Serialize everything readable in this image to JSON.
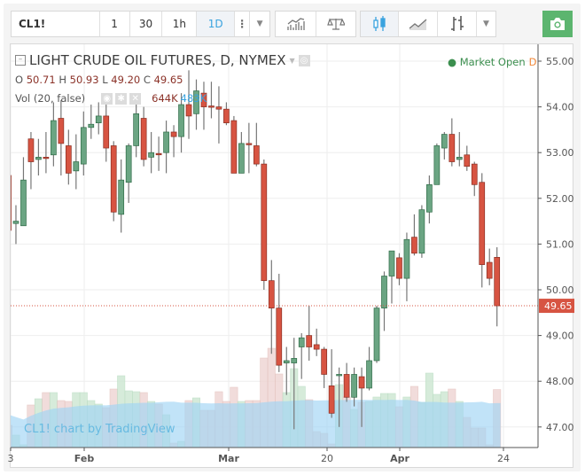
{
  "toolbar": {
    "symbol": "CL1!",
    "intervals": [
      "1",
      "30",
      "1h",
      "1D"
    ],
    "active_interval": "1D",
    "icons": [
      "more-vertical-icon",
      "chevron-down-icon",
      "indicators-icon",
      "compare-scale-icon",
      "candles-icon",
      "area-icon",
      "bars-icon",
      "chevron-down-icon"
    ],
    "snapshot_icon": "camera-icon"
  },
  "legend": {
    "title": "LIGHT CRUDE OIL FUTURES, D, NYMEX",
    "ohlc": {
      "o_label": "O",
      "o": "50.71",
      "h_label": "H",
      "h": "50.93",
      "l_label": "L",
      "l": "49.20",
      "c_label": "C",
      "c": "49.65"
    },
    "volume_label": "Vol (20, false)",
    "volume_value": "644K",
    "volume_ma_value": "483K",
    "market_status": "Market Open",
    "market_flag": "D"
  },
  "watermark": "CL1! chart by TradingView",
  "colors": {
    "up": "#6ba583",
    "down": "#d75442",
    "volume_ma": "#9fd4f5",
    "accent": "#3aa3df",
    "camera": "#5cb56f"
  },
  "chart_data": {
    "type": "candlestick",
    "ylim": [
      46.6,
      55.3
    ],
    "y_ticks": [
      "55.00",
      "54.00",
      "53.00",
      "52.00",
      "51.00",
      "50.00",
      "49.00",
      "48.00",
      "47.00"
    ],
    "x_ticks": [
      "3",
      "Feb",
      "Mar",
      "20",
      "Apr",
      "24"
    ],
    "last_price": "49.65",
    "grid": true,
    "ohlc": [
      [
        52.5,
        52.5,
        51.3,
        51.3
      ],
      [
        51.45,
        51.85,
        51.0,
        51.5
      ],
      [
        51.4,
        52.9,
        51.4,
        52.4
      ],
      [
        53.3,
        53.45,
        52.2,
        52.8
      ],
      [
        52.85,
        53.3,
        52.5,
        52.9
      ],
      [
        52.9,
        53.45,
        52.55,
        52.88
      ],
      [
        52.95,
        54.1,
        52.7,
        53.7
      ],
      [
        53.75,
        54.15,
        52.5,
        53.2
      ],
      [
        53.15,
        53.5,
        52.3,
        52.55
      ],
      [
        52.6,
        53.4,
        52.2,
        52.8
      ],
      [
        52.75,
        53.9,
        52.5,
        53.55
      ],
      [
        53.55,
        54.05,
        53.3,
        53.62
      ],
      [
        53.65,
        54.1,
        53.4,
        53.8
      ],
      [
        53.8,
        54.3,
        52.8,
        53.1
      ],
      [
        53.15,
        53.25,
        51.5,
        51.7
      ],
      [
        51.65,
        52.85,
        51.25,
        52.4
      ],
      [
        52.35,
        53.2,
        51.9,
        53.15
      ],
      [
        53.15,
        54.15,
        52.9,
        53.85
      ],
      [
        53.75,
        54.0,
        52.7,
        52.85
      ],
      [
        52.9,
        53.45,
        52.55,
        53.0
      ],
      [
        52.98,
        53.35,
        52.6,
        52.97
      ],
      [
        53.0,
        53.7,
        52.55,
        53.45
      ],
      [
        53.45,
        53.6,
        52.9,
        53.35
      ],
      [
        53.35,
        54.3,
        53.0,
        54.05
      ],
      [
        54.05,
        54.8,
        53.3,
        53.8
      ],
      [
        53.85,
        54.6,
        53.5,
        54.35
      ],
      [
        54.3,
        54.55,
        53.5,
        54.0
      ],
      [
        54.02,
        54.55,
        53.75,
        54.0
      ],
      [
        54.0,
        54.45,
        53.2,
        53.95
      ],
      [
        53.95,
        54.1,
        53.6,
        53.65
      ],
      [
        53.7,
        53.8,
        52.55,
        52.55
      ],
      [
        52.55,
        53.45,
        52.55,
        53.2
      ],
      [
        53.2,
        53.65,
        52.55,
        53.18
      ],
      [
        53.15,
        53.65,
        52.7,
        52.75
      ],
      [
        52.75,
        52.85,
        50.0,
        50.2
      ],
      [
        50.2,
        50.65,
        48.6,
        49.6
      ],
      [
        49.6,
        50.35,
        48.2,
        48.35
      ],
      [
        48.4,
        48.75,
        47.7,
        48.45
      ],
      [
        48.4,
        48.95,
        46.95,
        48.5
      ],
      [
        48.75,
        49.05,
        48.05,
        48.95
      ],
      [
        49.0,
        49.65,
        48.45,
        48.75
      ],
      [
        48.8,
        49.15,
        48.55,
        48.7
      ],
      [
        48.7,
        48.75,
        47.85,
        48.15
      ],
      [
        47.9,
        48.7,
        47.2,
        47.3
      ],
      [
        48.15,
        48.3,
        47.0,
        48.15
      ],
      [
        48.15,
        48.4,
        47.55,
        47.65
      ],
      [
        47.65,
        48.3,
        47.45,
        48.15
      ],
      [
        48.1,
        48.3,
        47.0,
        47.85
      ],
      [
        47.85,
        48.75,
        47.8,
        48.45
      ],
      [
        48.45,
        49.65,
        48.4,
        49.6
      ],
      [
        49.6,
        50.4,
        49.1,
        50.3
      ],
      [
        50.3,
        50.85,
        49.7,
        50.85
      ],
      [
        50.7,
        50.8,
        50.1,
        50.25
      ],
      [
        50.25,
        51.25,
        49.75,
        51.1
      ],
      [
        51.15,
        51.65,
        50.75,
        50.8
      ],
      [
        50.8,
        51.85,
        50.7,
        51.75
      ],
      [
        51.7,
        52.5,
        51.45,
        52.3
      ],
      [
        52.3,
        53.2,
        52.3,
        53.15
      ],
      [
        53.1,
        53.45,
        52.85,
        53.4
      ],
      [
        53.4,
        53.75,
        52.7,
        52.8
      ],
      [
        52.85,
        53.45,
        52.7,
        52.9
      ],
      [
        52.95,
        53.15,
        52.6,
        52.7
      ],
      [
        52.75,
        52.8,
        52.05,
        52.3
      ],
      [
        52.35,
        52.55,
        50.05,
        50.55
      ],
      [
        50.6,
        50.9,
        50.1,
        50.25
      ],
      [
        50.71,
        50.93,
        49.2,
        49.65
      ]
    ],
    "volume_k": [
      240,
      130,
      20,
      470,
      540,
      610,
      610,
      520,
      510,
      610,
      610,
      520,
      480,
      440,
      650,
      800,
      630,
      620,
      610,
      510,
      480,
      360,
      40,
      60,
      520,
      550,
      410,
      410,
      620,
      510,
      670,
      510,
      520,
      520,
      1000,
      1110,
      820,
      610,
      880,
      680,
      530,
      170,
      150,
      30,
      700,
      560,
      420,
      500,
      510,
      560,
      600,
      600,
      450,
      560,
      680,
      500,
      830,
      590,
      620,
      650,
      510,
      330,
      210,
      210,
      20,
      644
    ],
    "volume_ma_k": 483
  }
}
